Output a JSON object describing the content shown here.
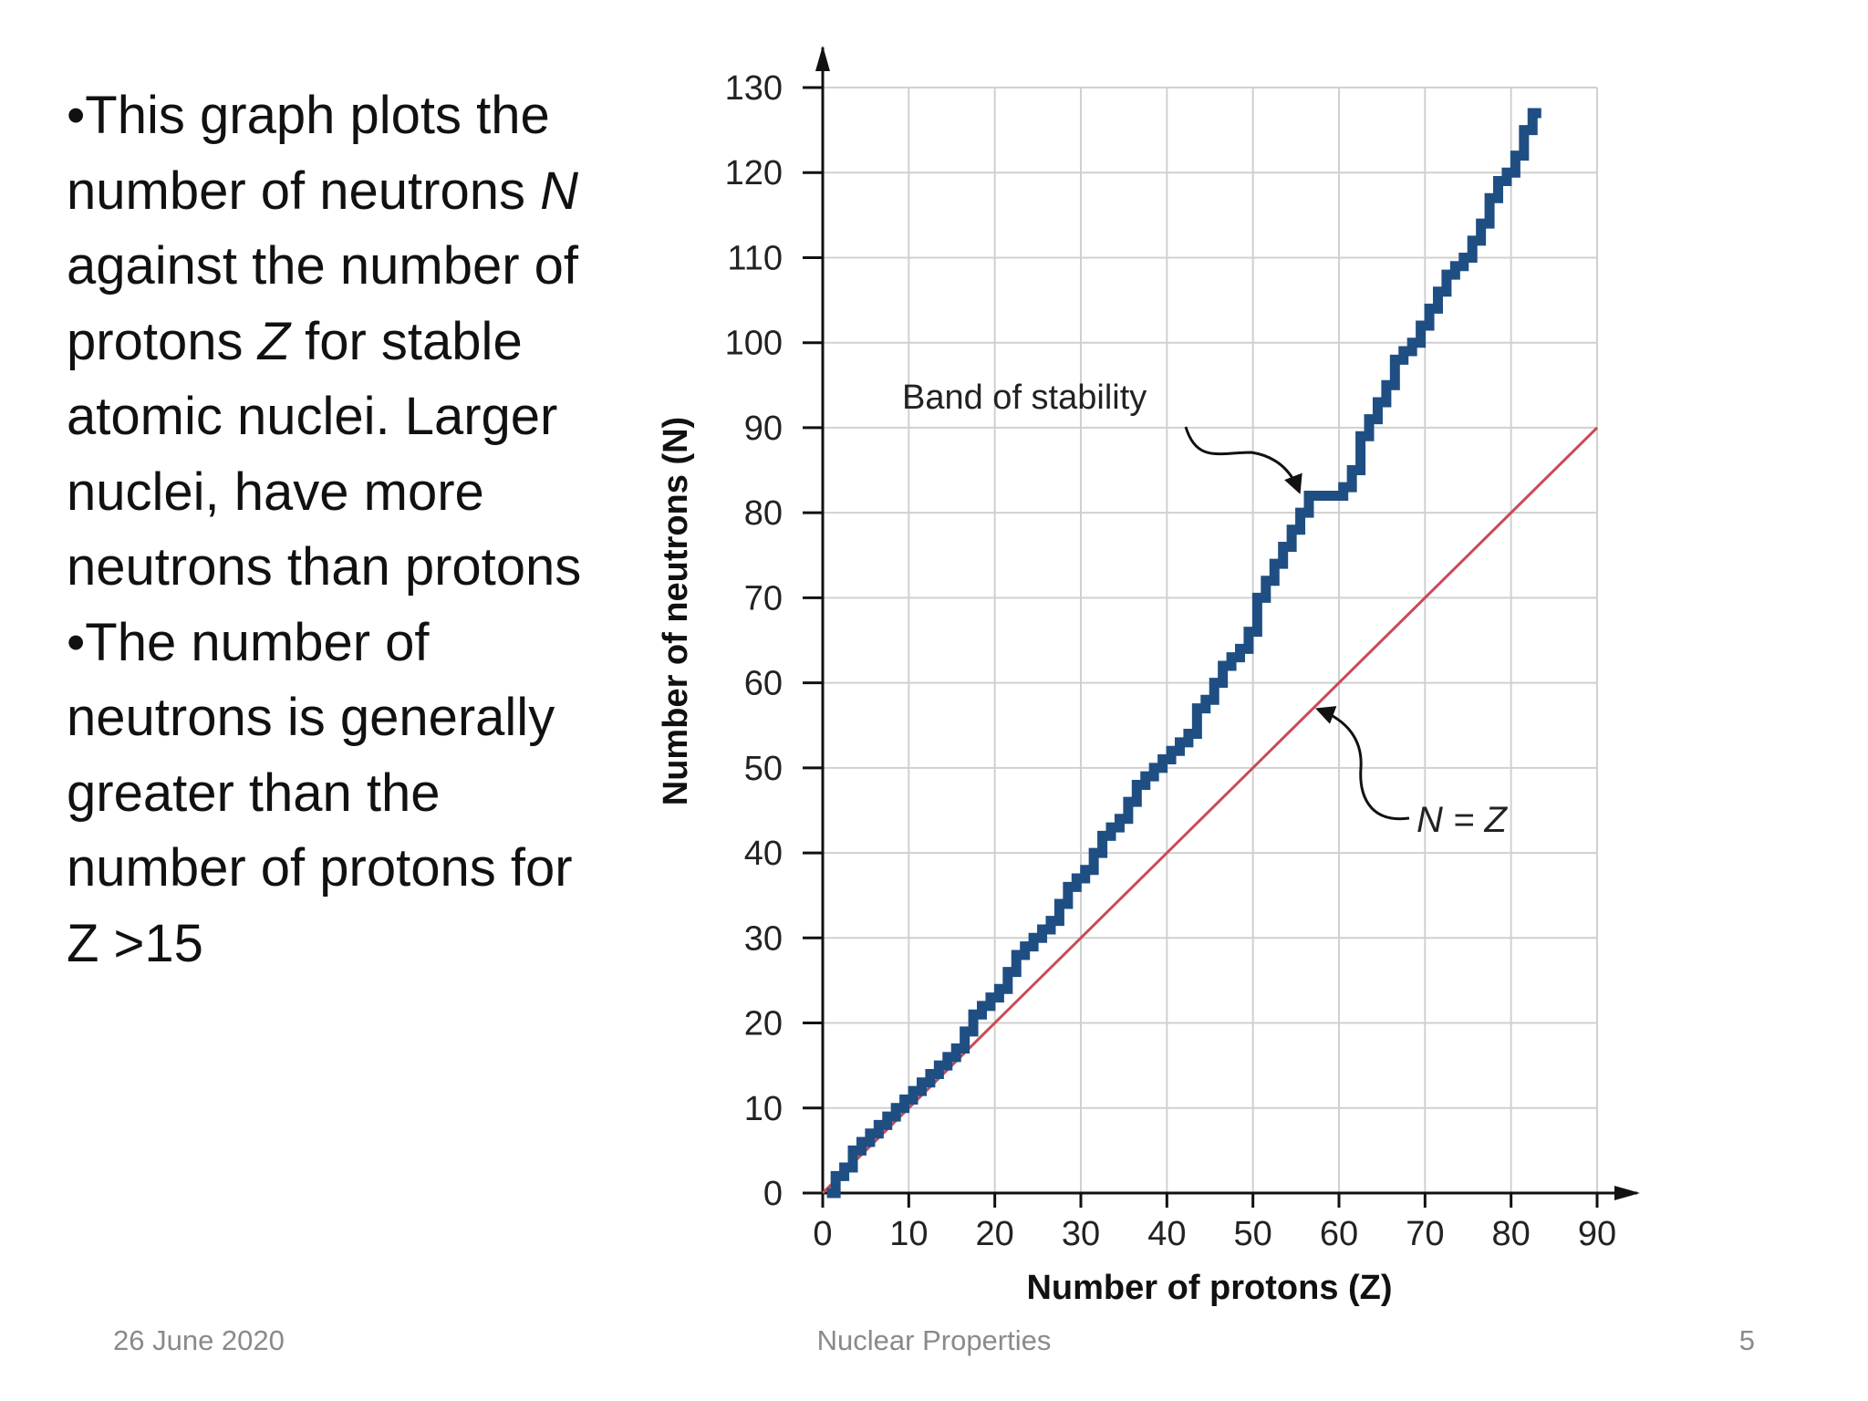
{
  "slide": {
    "bullets": [
      {
        "parts": [
          {
            "t": "•This graph plots the number of neutrons "
          },
          {
            "t": "N",
            "i": true
          },
          {
            "t": " against the number of protons "
          },
          {
            "t": "Z",
            "i": true
          },
          {
            "t": " for stable atomic nuclei. Larger nuclei, have more neutrons than protons"
          }
        ]
      },
      {
        "parts": [
          {
            "t": "•The number of neutrons is generally greater than the number of protons for"
          }
        ]
      },
      {
        "parts": [
          {
            "t": " Z >15"
          }
        ]
      }
    ],
    "footer": {
      "date": "26 June 2020",
      "title": "Nuclear Properties",
      "page": "5"
    }
  },
  "chart_data": {
    "type": "line",
    "xlabel": "Number of protons (Z)",
    "ylabel": "Number of neutrons (N)",
    "xlim": [
      0,
      90
    ],
    "ylim": [
      0,
      130
    ],
    "xticks": [
      0,
      10,
      20,
      30,
      40,
      50,
      60,
      70,
      80,
      90
    ],
    "yticks": [
      0,
      10,
      20,
      30,
      40,
      50,
      60,
      70,
      80,
      90,
      100,
      110,
      120,
      130
    ],
    "grid": true,
    "annotations": [
      {
        "text": "Band of stability",
        "points_to": [
          55,
          82
        ]
      },
      {
        "text": "N = Z",
        "points_to": [
          58,
          56
        ]
      }
    ],
    "series": [
      {
        "name": "N = Z",
        "style": "line",
        "color": "#c84b55",
        "points": [
          [
            0,
            0
          ],
          [
            90,
            90
          ]
        ]
      },
      {
        "name": "Band of stability",
        "style": "step-band",
        "color": "#1f4e83",
        "points": [
          [
            1,
            0
          ],
          [
            2,
            2
          ],
          [
            3,
            3
          ],
          [
            4,
            5
          ],
          [
            5,
            6
          ],
          [
            6,
            7
          ],
          [
            7,
            8
          ],
          [
            8,
            9
          ],
          [
            9,
            10
          ],
          [
            10,
            11
          ],
          [
            11,
            12
          ],
          [
            12,
            13
          ],
          [
            13,
            14
          ],
          [
            14,
            15
          ],
          [
            15,
            16
          ],
          [
            16,
            17
          ],
          [
            17,
            19
          ],
          [
            18,
            21
          ],
          [
            19,
            22
          ],
          [
            20,
            23
          ],
          [
            21,
            24
          ],
          [
            22,
            26
          ],
          [
            23,
            28
          ],
          [
            24,
            29
          ],
          [
            25,
            30
          ],
          [
            26,
            31
          ],
          [
            27,
            32
          ],
          [
            28,
            34
          ],
          [
            29,
            36
          ],
          [
            30,
            37
          ],
          [
            31,
            38
          ],
          [
            32,
            40
          ],
          [
            33,
            42
          ],
          [
            34,
            43
          ],
          [
            35,
            44
          ],
          [
            36,
            46
          ],
          [
            37,
            48
          ],
          [
            38,
            49
          ],
          [
            39,
            50
          ],
          [
            40,
            51
          ],
          [
            41,
            52
          ],
          [
            42,
            53
          ],
          [
            43,
            54
          ],
          [
            44,
            57
          ],
          [
            45,
            58
          ],
          [
            46,
            60
          ],
          [
            47,
            62
          ],
          [
            48,
            63
          ],
          [
            49,
            64
          ],
          [
            50,
            66
          ],
          [
            51,
            70
          ],
          [
            52,
            72
          ],
          [
            53,
            74
          ],
          [
            54,
            76
          ],
          [
            55,
            78
          ],
          [
            56,
            80
          ],
          [
            57,
            82
          ],
          [
            58,
            82
          ],
          [
            59,
            82
          ],
          [
            60,
            82
          ],
          [
            61,
            83
          ],
          [
            62,
            85
          ],
          [
            63,
            89
          ],
          [
            64,
            91
          ],
          [
            65,
            93
          ],
          [
            66,
            95
          ],
          [
            67,
            98
          ],
          [
            68,
            99
          ],
          [
            69,
            100
          ],
          [
            70,
            102
          ],
          [
            71,
            104
          ],
          [
            72,
            106
          ],
          [
            73,
            108
          ],
          [
            74,
            109
          ],
          [
            75,
            110
          ],
          [
            76,
            112
          ],
          [
            77,
            114
          ],
          [
            78,
            117
          ],
          [
            79,
            119
          ],
          [
            80,
            120
          ],
          [
            81,
            122
          ],
          [
            82,
            125
          ],
          [
            83,
            127
          ]
        ]
      }
    ]
  }
}
